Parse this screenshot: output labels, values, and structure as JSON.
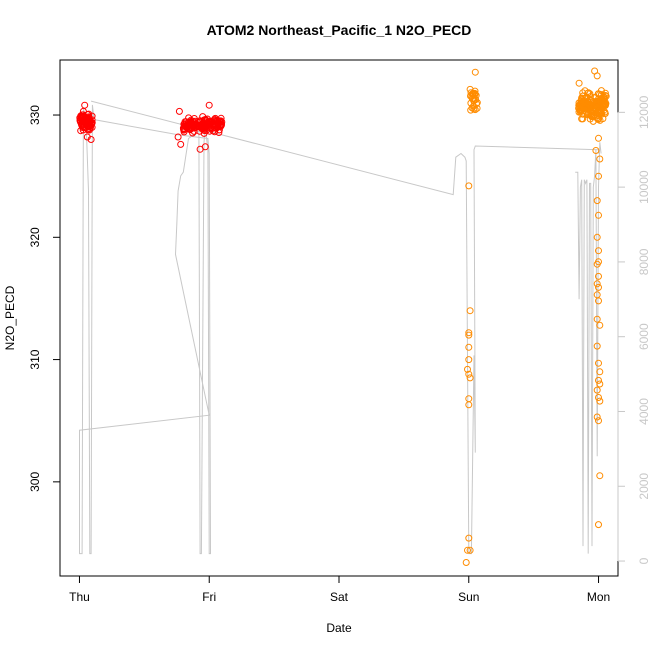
{
  "chart_data": {
    "type": "scatter",
    "title": "ATOM2 Northeast_Pacific_1 N2O_PECD",
    "xlabel": "Date",
    "ylabel": "N2O_PECD",
    "x_ticks": [
      "Thu",
      "Fri",
      "Sat",
      "Sun",
      "Mon"
    ],
    "x_tick_days": [
      0,
      1,
      2,
      3,
      4
    ],
    "xlim_days": [
      -0.15,
      4.15
    ],
    "ylim": [
      292.3,
      334.5
    ],
    "y_ticks": [
      300,
      310,
      320,
      330
    ],
    "y2_ticks": [
      0,
      2000,
      4000,
      6000,
      8000,
      10000,
      12000
    ],
    "y2lim": [
      -400,
      13400
    ],
    "colors": {
      "series_red": "#ff0000",
      "series_orange": "#ff8c00",
      "altitude_line": "#c8c8c8",
      "axis": "#000000",
      "right_axis": "#c8c8c8"
    },
    "series": [
      {
        "color_key": "series_red",
        "clusters": [
          {
            "x_center": 0.05,
            "x_spread": 0.05,
            "y_center": 329.4,
            "y_spread": 0.65,
            "count": 90,
            "extras": [
              [
                0.04,
                330.8
              ],
              [
                0.06,
                328.2
              ],
              [
                0.09,
                328.0
              ],
              [
                0.03,
                330.3
              ]
            ]
          },
          {
            "x_center": 0.95,
            "x_spread": 0.15,
            "y_center": 329.2,
            "y_spread": 0.6,
            "count": 150,
            "extras": [
              [
                0.97,
                327.4
              ],
              [
                0.93,
                327.2
              ],
              [
                1.0,
                330.8
              ],
              [
                0.77,
                330.3
              ],
              [
                0.76,
                328.2
              ],
              [
                0.78,
                327.6
              ]
            ]
          }
        ]
      },
      {
        "color_key": "series_orange",
        "clusters": [
          {
            "x_center": 3.04,
            "x_spread": 0.03,
            "y_center": 331.3,
            "y_spread": 1.05,
            "count": 28,
            "extras": [
              [
                3.05,
                333.5
              ],
              [
                3.0,
                324.2
              ],
              [
                3.01,
                314.0
              ],
              [
                3.0,
                312.2
              ],
              [
                3.0,
                312.0
              ],
              [
                3.0,
                311.0
              ],
              [
                3.0,
                310.0
              ],
              [
                2.99,
                309.2
              ],
              [
                3.0,
                308.8
              ],
              [
                3.01,
                308.5
              ],
              [
                3.0,
                306.8
              ],
              [
                3.0,
                306.3
              ],
              [
                3.0,
                295.4
              ],
              [
                2.99,
                294.4
              ],
              [
                3.01,
                294.4
              ],
              [
                2.98,
                293.4
              ]
            ]
          },
          {
            "x_center": 3.95,
            "x_spread": 0.11,
            "y_center": 330.8,
            "y_spread": 1.1,
            "count": 180,
            "extras": [
              [
                3.97,
                333.6
              ],
              [
                3.99,
                333.2
              ],
              [
                3.85,
                332.6
              ],
              [
                4.0,
                325.0
              ],
              [
                3.99,
                323.0
              ],
              [
                4.0,
                321.8
              ],
              [
                3.99,
                320.0
              ],
              [
                4.0,
                318.9
              ],
              [
                4.0,
                318.0
              ],
              [
                3.99,
                317.8
              ],
              [
                4.0,
                316.8
              ],
              [
                3.99,
                316.2
              ],
              [
                4.0,
                315.9
              ],
              [
                3.99,
                315.3
              ],
              [
                4.0,
                314.8
              ],
              [
                3.99,
                313.3
              ],
              [
                4.01,
                312.8
              ],
              [
                3.99,
                311.1
              ],
              [
                4.0,
                309.7
              ],
              [
                4.01,
                309.0
              ],
              [
                4.0,
                308.3
              ],
              [
                4.01,
                308.0
              ],
              [
                3.99,
                307.5
              ],
              [
                4.0,
                306.9
              ],
              [
                4.01,
                306.6
              ],
              [
                3.99,
                305.3
              ],
              [
                4.0,
                305.0
              ],
              [
                4.01,
                300.5
              ],
              [
                4.0,
                296.5
              ],
              [
                3.98,
                327.1
              ],
              [
                4.0,
                328.1
              ],
              [
                4.01,
                326.4
              ]
            ]
          }
        ]
      }
    ],
    "altitude_line": {
      "axis": "right",
      "points": [
        [
          0.0,
          2500
        ],
        [
          0.0,
          200
        ],
        [
          0.02,
          200
        ],
        [
          0.03,
          12100
        ],
        [
          0.05,
          11800
        ],
        [
          0.07,
          9900
        ],
        [
          0.08,
          200
        ],
        [
          0.09,
          200
        ],
        [
          0.1,
          12200
        ],
        [
          0.11,
          11900
        ],
        [
          0.12,
          11800
        ],
        [
          0.76,
          11400
        ],
        [
          0.99,
          11300
        ],
        [
          1.0,
          10900
        ],
        [
          1.01,
          200
        ],
        [
          1.0,
          200
        ],
        [
          0.99,
          11000
        ],
        [
          0.97,
          11600
        ],
        [
          0.96,
          11200
        ],
        [
          0.94,
          200
        ],
        [
          0.93,
          200
        ],
        [
          0.92,
          11500
        ],
        [
          0.84,
          11300
        ],
        [
          0.8,
          10400
        ],
        [
          0.78,
          10300
        ],
        [
          0.76,
          9900
        ],
        [
          0.75,
          9000
        ],
        [
          0.74,
          8200
        ],
        [
          1.0,
          3900
        ],
        [
          0.0,
          3500
        ],
        [
          0.0,
          2500
        ]
      ],
      "segments": [
        [
          [
            0.09,
            12300
          ],
          [
            2.88,
            9800
          ],
          [
            2.9,
            10800
          ],
          [
            2.94,
            10900
          ],
          [
            2.97,
            10800
          ],
          [
            2.98,
            10700
          ],
          [
            3.0,
            200
          ],
          [
            3.02,
            200
          ],
          [
            3.04,
            5500
          ],
          [
            3.05,
            2900
          ],
          [
            3.04,
            11000
          ],
          [
            3.05,
            11100
          ],
          [
            4.0,
            11000
          ],
          [
            4.0,
            10900
          ]
        ],
        [
          [
            3.82,
            10400
          ],
          [
            3.84,
            10400
          ],
          [
            3.85,
            7000
          ],
          [
            3.86,
            10000
          ],
          [
            3.87,
            10200
          ],
          [
            3.88,
            400
          ],
          [
            3.89,
            10200
          ],
          [
            3.9,
            10100
          ],
          [
            3.91,
            10200
          ],
          [
            3.92,
            200
          ],
          [
            3.93,
            10100
          ],
          [
            3.94,
            10100
          ],
          [
            3.95,
            400
          ],
          [
            3.96,
            10000
          ],
          [
            3.97,
            10300
          ],
          [
            3.98,
            11000
          ],
          [
            3.99,
            2800
          ],
          [
            4.0,
            10000
          ],
          [
            4.01,
            11200
          ],
          [
            4.02,
            10900
          ]
        ]
      ]
    }
  }
}
